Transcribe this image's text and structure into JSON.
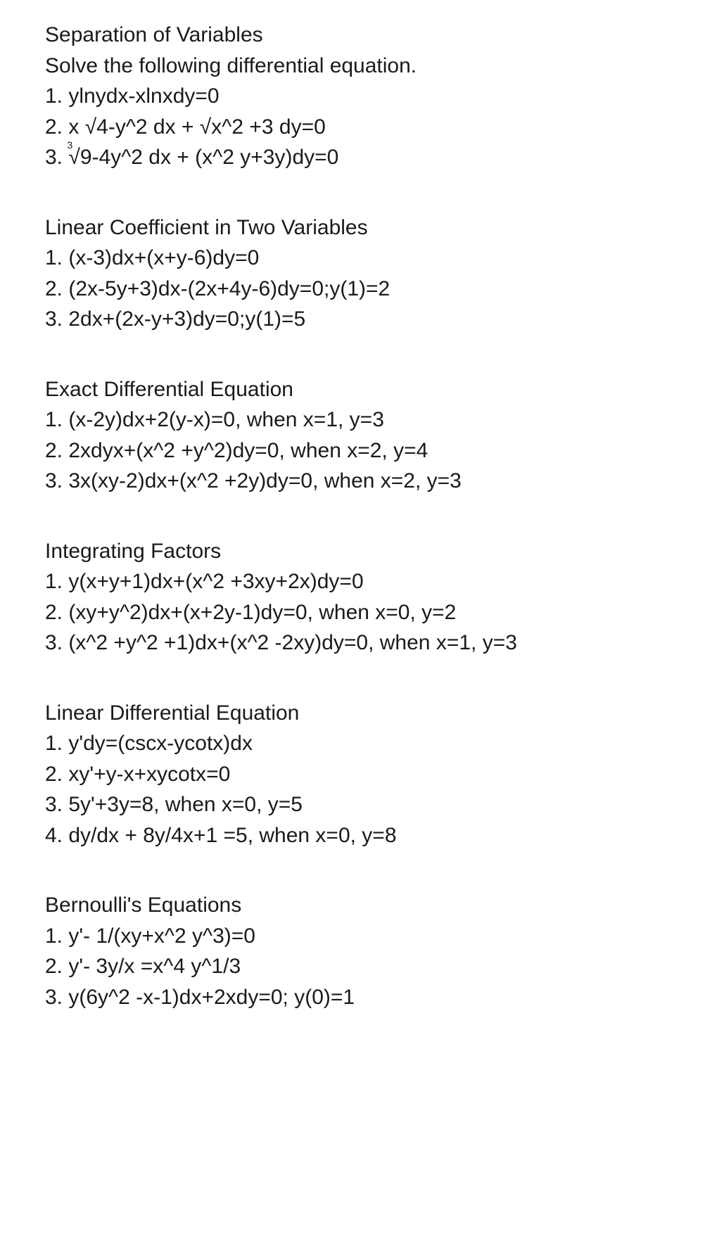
{
  "sections": [
    {
      "title": "Separation of Variables",
      "subtitle": "Solve the following differential equation.",
      "items": [
        "1. ylnydx-xlnxdy=0",
        "2. x √4-y^2 dx + √x^2 +3 dy=0",
        "3. ∛9-4y^2 dx + (x^2 y+3y)dy=0"
      ]
    },
    {
      "title": "Linear Coefficient in Two Variables",
      "items": [
        "1. (x-3)dx+(x+y-6)dy=0",
        "2. (2x-5y+3)dx-(2x+4y-6)dy=0;y(1)=2",
        "3. 2dx+(2x-y+3)dy=0;y(1)=5"
      ]
    },
    {
      "title": "Exact Differential Equation",
      "items": [
        "1. (x-2y)dx+2(y-x)=0, when x=1, y=3",
        "2. 2xdyx+(x^2 +y^2)dy=0, when x=2, y=4",
        "3. 3x(xy-2)dx+(x^2 +2y)dy=0, when x=2, y=3"
      ]
    },
    {
      "title": "Integrating Factors",
      "items": [
        "1. y(x+y+1)dx+(x^2 +3xy+2x)dy=0",
        "2. (xy+y^2)dx+(x+2y-1)dy=0, when x=0, y=2",
        "3. (x^2 +y^2 +1)dx+(x^2 -2xy)dy=0, when x=1, y=3"
      ]
    },
    {
      "title": "Linear Differential Equation",
      "items": [
        "1. y'dy=(cscx-ycotx)dx",
        "2. xy'+y-x+xycotx=0",
        "3. 5y'+3y=8, when x=0, y=5",
        "4. dy/dx + 8y/4x+1 =5, when x=0, y=8"
      ]
    },
    {
      "title": "Bernoulli's Equations",
      "items": [
        "1. y'- 1/(xy+x^2 y^3)=0",
        "2. y'- 3y/x =x^4 y^1/3",
        "3. y(6y^2 -x-1)dx+2xdy=0; y(0)=1"
      ]
    }
  ],
  "cuberoot_html": "<span class=\"cuberoot\"><span class=\"cuberoot-idx\">3</span>√</span>"
}
